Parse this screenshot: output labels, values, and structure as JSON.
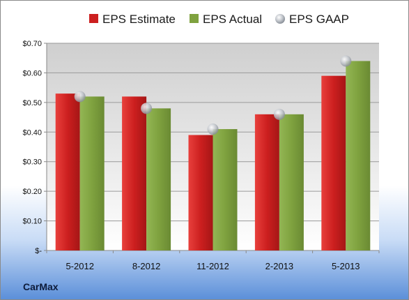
{
  "chart_data": {
    "type": "bar",
    "categories": [
      "5-2012",
      "8-2012",
      "11-2012",
      "2-2013",
      "5-2013"
    ],
    "series": [
      {
        "name": "EPS Estimate",
        "values": [
          0.53,
          0.52,
          0.39,
          0.46,
          0.59
        ],
        "color": "#cc1f1f"
      },
      {
        "name": "EPS Actual",
        "values": [
          0.52,
          0.48,
          0.41,
          0.46,
          0.64
        ],
        "color": "#7fa23f"
      },
      {
        "name": "EPS GAAP",
        "values": [
          0.52,
          0.48,
          0.41,
          0.46,
          0.64
        ],
        "color": "#b9bec6",
        "marker": "sphere"
      }
    ],
    "ylim": [
      0,
      0.7
    ],
    "yticks": [
      0,
      0.1,
      0.2,
      0.3,
      0.4,
      0.5,
      0.6,
      0.7
    ],
    "ytick_labels": [
      "$-",
      "$0.10",
      "$0.20",
      "$0.30",
      "$0.40",
      "$0.50",
      "$0.60",
      "$0.70"
    ],
    "grid": true,
    "legend_position": "top"
  },
  "company": "CarMax",
  "colors": {
    "background_top": "#ffffff",
    "background_bottom": "#5b8fd9",
    "plot_area_top": "#cfcfcf",
    "plot_area_bottom": "#ffffff"
  }
}
